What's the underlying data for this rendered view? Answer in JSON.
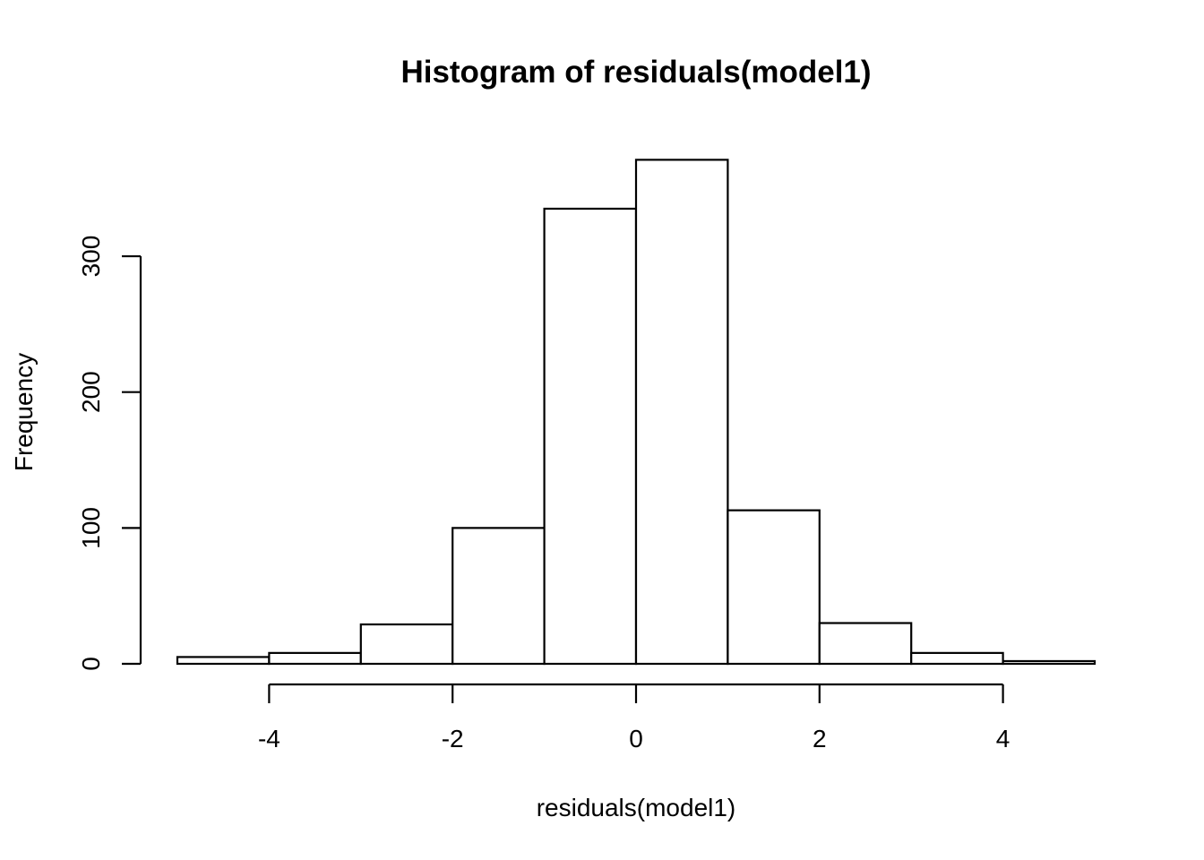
{
  "chart_data": {
    "type": "bar",
    "title": "Histogram of residuals(model1)",
    "xlabel": "residuals(model1)",
    "ylabel": "Frequency",
    "bins": [
      {
        "start": -5,
        "end": -4,
        "count": 5
      },
      {
        "start": -4,
        "end": -3,
        "count": 8
      },
      {
        "start": -3,
        "end": -2,
        "count": 29
      },
      {
        "start": -2,
        "end": -1,
        "count": 100
      },
      {
        "start": -1,
        "end": 0,
        "count": 335
      },
      {
        "start": 0,
        "end": 1,
        "count": 371
      },
      {
        "start": 1,
        "end": 2,
        "count": 113
      },
      {
        "start": 2,
        "end": 3,
        "count": 30
      },
      {
        "start": 3,
        "end": 4,
        "count": 8
      },
      {
        "start": 4,
        "end": 5,
        "count": 2
      }
    ],
    "xlim": [
      -5,
      5
    ],
    "ylim": [
      0,
      371
    ],
    "x_ticks": [
      -4,
      -2,
      0,
      2,
      4
    ],
    "x_tick_labels": [
      "-4",
      "-2",
      "0",
      "2",
      "4"
    ],
    "y_ticks": [
      0,
      100,
      200,
      300
    ],
    "y_tick_labels": [
      "0",
      "100",
      "200",
      "300"
    ],
    "grid": false,
    "legend": "none",
    "bar_fill": "#ffffff",
    "bar_stroke": "#000000"
  }
}
